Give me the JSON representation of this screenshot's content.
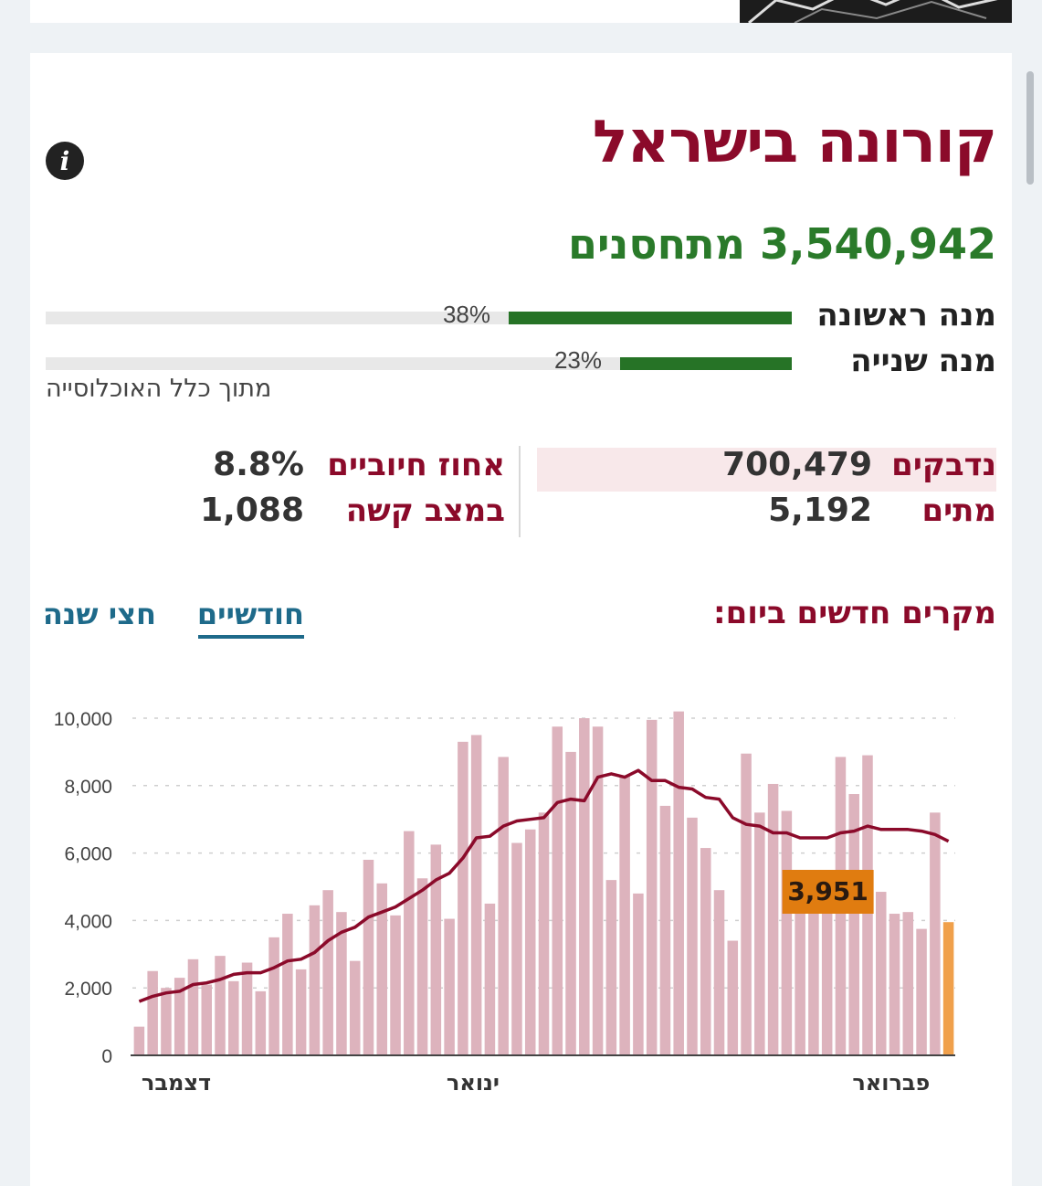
{
  "page": {
    "title": "קורונה בישראל",
    "vaccinated": "3,540,942 מתחסנים"
  },
  "doses": [
    {
      "label": "מנה ראשונה",
      "pct": "38%",
      "fraction": 0.38
    },
    {
      "label": "מנה שנייה",
      "pct": "23%",
      "fraction": 0.23
    }
  ],
  "population_note": "מתוך כלל האוכלוסייה",
  "stats": {
    "infected_label": "נדבקים",
    "infected_value": "700,479",
    "dead_label": "מתים",
    "dead_value": "5,192",
    "positive_label": "אחוז חיוביים",
    "positive_value": "8.8%",
    "severe_label": "במצב קשה",
    "severe_value": "1,088"
  },
  "chart_section": {
    "heading": "מקרים חדשים ביום:",
    "tabs": [
      {
        "label": "חודשיים",
        "active": true
      },
      {
        "label": "חצי שנה",
        "active": false
      }
    ]
  },
  "chart_data": {
    "type": "bar",
    "title": "",
    "xlabel": "",
    "ylabel": "",
    "ylim": [
      0,
      10000
    ],
    "yticks": [
      "0",
      "2,000",
      "4,000",
      "6,000",
      "8,000",
      "10,000"
    ],
    "ytick_values": [
      0,
      2000,
      4000,
      6000,
      8000,
      10000
    ],
    "month_labels": [
      {
        "label": "דצמבר",
        "index": 0
      },
      {
        "label": "ינואר",
        "index": 22
      },
      {
        "label": "פברואר",
        "index": 53
      }
    ],
    "series": [
      {
        "type": "bar",
        "values": [
          850,
          2500,
          2000,
          2300,
          2850,
          2100,
          2950,
          2200,
          2750,
          1900,
          3500,
          4200,
          2550,
          4450,
          4900,
          4250,
          2800,
          5800,
          5100,
          4150,
          6650,
          5250,
          6250,
          4050,
          9300,
          9500,
          4500,
          8850,
          6300,
          6700,
          7200,
          9750,
          9000,
          10000,
          9750,
          5200,
          8300,
          4800,
          9950,
          7400,
          10200,
          7050,
          6150,
          4900,
          3400,
          8950,
          7200,
          8050,
          7250,
          5100,
          4800,
          4650,
          8850,
          7750,
          8900,
          4850,
          4200,
          4250,
          3750,
          7200,
          3951
        ]
      },
      {
        "type": "line",
        "values": [
          1600,
          1750,
          1850,
          1900,
          2100,
          2150,
          2250,
          2400,
          2450,
          2450,
          2600,
          2800,
          2850,
          3050,
          3400,
          3650,
          3800,
          4100,
          4250,
          4400,
          4650,
          4900,
          5200,
          5400,
          5850,
          6450,
          6500,
          6800,
          6950,
          7000,
          7050,
          7500,
          7600,
          7550,
          8250,
          8350,
          8250,
          8450,
          8150,
          8150,
          7950,
          7900,
          7650,
          7600,
          7050,
          6850,
          6800,
          6600,
          6600,
          6450,
          6450,
          6450,
          6600,
          6650,
          6800,
          6700,
          6700,
          6700,
          6650,
          6550,
          6350
        ]
      }
    ],
    "highlight": {
      "label": "3,951",
      "value": 3951
    },
    "colors": {
      "bar": "#ddb3bd",
      "bar_latest": "#f0a04b",
      "line": "#8b0a2a",
      "label_bg": "#e07c10"
    }
  }
}
